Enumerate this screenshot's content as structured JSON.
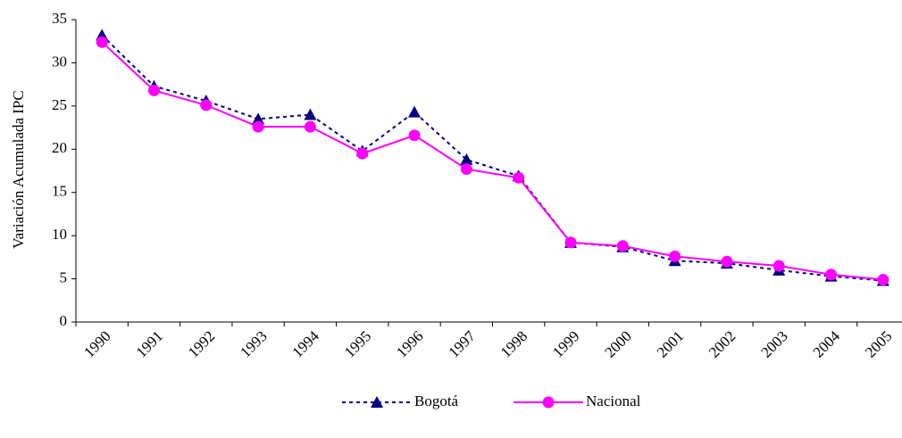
{
  "chart_data": {
    "type": "line",
    "y_label": "Variación Acumulada IPC",
    "categories": [
      "1990",
      "1991",
      "1992",
      "1993",
      "1994",
      "1995",
      "1996",
      "1997",
      "1998",
      "1999",
      "2000",
      "2001",
      "2002",
      "2003",
      "2004",
      "2005"
    ],
    "series": [
      {
        "name": "Bogotá",
        "color": "#000080",
        "line_style": "dashed",
        "marker": "triangle",
        "values": [
          33.2,
          27.3,
          25.6,
          23.5,
          24.0,
          19.8,
          24.3,
          18.8,
          16.9,
          9.2,
          8.7,
          7.1,
          6.8,
          6.0,
          5.3,
          4.8
        ]
      },
      {
        "name": "Nacional",
        "color": "#ff00ff",
        "line_style": "solid",
        "marker": "circle",
        "values": [
          32.4,
          26.8,
          25.1,
          22.6,
          22.6,
          19.5,
          21.6,
          17.7,
          16.7,
          9.2,
          8.8,
          7.6,
          7.0,
          6.5,
          5.5,
          4.9
        ]
      }
    ],
    "ylim": [
      0,
      35
    ],
    "yticks": [
      0,
      5,
      10,
      15,
      20,
      25,
      30,
      35
    ],
    "grid": false,
    "legend": "bottom"
  }
}
